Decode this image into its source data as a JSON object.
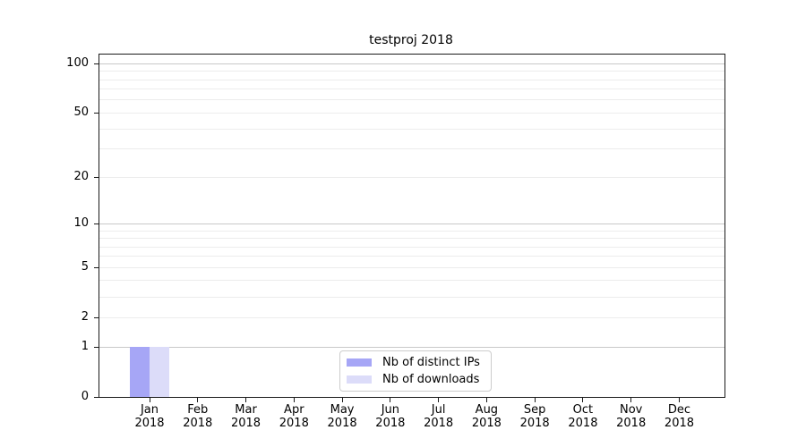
{
  "chart_data": {
    "type": "bar",
    "title": "testproj 2018",
    "categories": [
      "Jan 2018",
      "Feb 2018",
      "Mar 2018",
      "Apr 2018",
      "May 2018",
      "Jun 2018",
      "Jul 2018",
      "Aug 2018",
      "Sep 2018",
      "Oct 2018",
      "Nov 2018",
      "Dec 2018"
    ],
    "series": [
      {
        "name": "Nb of distinct IPs",
        "color": "#a6a6f6",
        "values": [
          1,
          0,
          0,
          0,
          0,
          0,
          0,
          0,
          0,
          0,
          0,
          0
        ]
      },
      {
        "name": "Nb of downloads",
        "color": "#dcdcf9",
        "values": [
          1,
          0,
          0,
          0,
          0,
          0,
          0,
          0,
          0,
          0,
          0,
          0
        ]
      }
    ],
    "yscale": "log10(value+1)",
    "ylim": [
      0,
      113
    ],
    "y_ticks": [
      {
        "label": "100",
        "value": 100
      },
      {
        "label": "50",
        "value": 50
      },
      {
        "label": "20",
        "value": 20
      },
      {
        "label": "10",
        "value": 10
      },
      {
        "label": "5",
        "value": 5
      },
      {
        "label": "2",
        "value": 2
      },
      {
        "label": "1",
        "value": 1
      },
      {
        "label": "0",
        "value": 0
      }
    ],
    "y_major_grid_values": [
      1,
      10,
      100
    ],
    "y_minor_grid_values": [
      2,
      3,
      4,
      5,
      6,
      7,
      8,
      9,
      20,
      30,
      40,
      50,
      60,
      70,
      80,
      90
    ],
    "grid": true,
    "legend_position": "lower center"
  },
  "colors": {
    "background": "#ffffff",
    "bar_distinct_ips": "#a6a6f6",
    "bar_downloads": "#dcdcf9",
    "major_grid": "#c9c9c9",
    "minor_grid": "#ececec",
    "spine": "#1a1a1a",
    "text": "#000000",
    "legend_border": "#cccccc"
  }
}
